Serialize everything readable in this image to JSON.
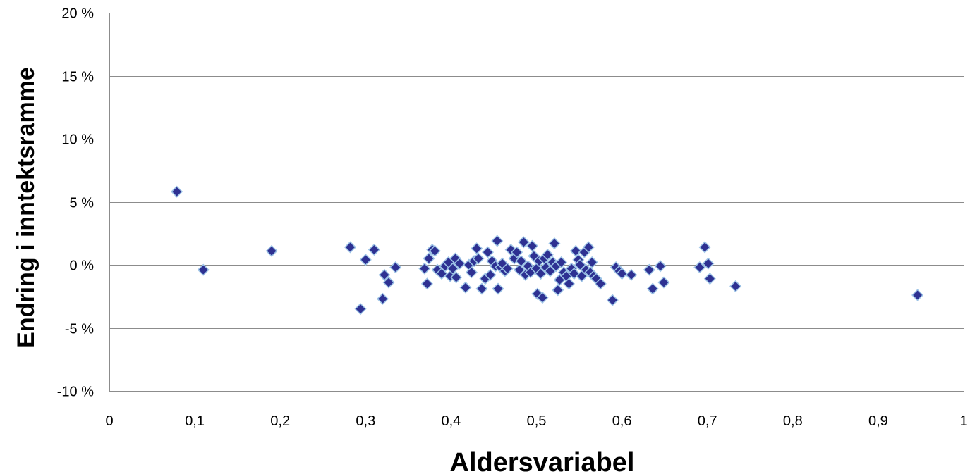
{
  "chart_data": {
    "type": "scatter",
    "title": "",
    "xlabel": "Aldersvariabel",
    "ylabel": "Endring i inntektsramme",
    "xlim": [
      0,
      1
    ],
    "ylim": [
      -10,
      20
    ],
    "x_ticks": [
      0,
      0.1,
      0.2,
      0.3,
      0.4,
      0.5,
      0.6,
      0.7,
      0.8,
      0.9,
      1
    ],
    "x_tick_labels": [
      "0",
      "0,1",
      "0,2",
      "0,3",
      "0,4",
      "0,5",
      "0,6",
      "0,7",
      "0,8",
      "0,9",
      "1"
    ],
    "y_ticks": [
      20,
      15,
      10,
      5,
      0,
      -5,
      -10
    ],
    "y_tick_labels": [
      "20 %",
      "15 %",
      "10 %",
      "5 %",
      "0 %",
      "-5 %",
      "-10 %"
    ],
    "horizontal_gridlines": true,
    "vertical_gridlines": false,
    "legend": "none",
    "marker": "diamond",
    "marker_color": "#2E3192",
    "marker_edge_color": "#9DC3E6",
    "gridline_color": "#8C8C8C",
    "points": [
      {
        "x": 0.079,
        "y": 5.8
      },
      {
        "x": 0.11,
        "y": -0.4
      },
      {
        "x": 0.19,
        "y": 1.1
      },
      {
        "x": 0.282,
        "y": 1.4
      },
      {
        "x": 0.294,
        "y": -3.5
      },
      {
        "x": 0.3,
        "y": 0.4
      },
      {
        "x": 0.31,
        "y": 1.2
      },
      {
        "x": 0.32,
        "y": -2.7
      },
      {
        "x": 0.322,
        "y": -0.8
      },
      {
        "x": 0.327,
        "y": -1.4
      },
      {
        "x": 0.335,
        "y": -0.2
      },
      {
        "x": 0.369,
        "y": -0.3
      },
      {
        "x": 0.372,
        "y": -1.5
      },
      {
        "x": 0.374,
        "y": 0.5
      },
      {
        "x": 0.378,
        "y": 1.2
      },
      {
        "x": 0.381,
        "y": 1.1
      },
      {
        "x": 0.384,
        "y": -0.4
      },
      {
        "x": 0.389,
        "y": -0.7
      },
      {
        "x": 0.393,
        "y": -0.1
      },
      {
        "x": 0.397,
        "y": 0.2
      },
      {
        "x": 0.399,
        "y": -0.9
      },
      {
        "x": 0.402,
        "y": -0.3
      },
      {
        "x": 0.405,
        "y": 0.5
      },
      {
        "x": 0.406,
        "y": -1.0
      },
      {
        "x": 0.41,
        "y": 0.1
      },
      {
        "x": 0.417,
        "y": -1.8
      },
      {
        "x": 0.421,
        "y": 0.0
      },
      {
        "x": 0.424,
        "y": -0.6
      },
      {
        "x": 0.427,
        "y": 0.3
      },
      {
        "x": 0.43,
        "y": 1.3
      },
      {
        "x": 0.432,
        "y": 0.5
      },
      {
        "x": 0.436,
        "y": -1.9
      },
      {
        "x": 0.44,
        "y": -1.1
      },
      {
        "x": 0.443,
        "y": 1.0
      },
      {
        "x": 0.446,
        "y": -0.8
      },
      {
        "x": 0.448,
        "y": 0.3
      },
      {
        "x": 0.452,
        "y": -0.1
      },
      {
        "x": 0.454,
        "y": 1.9
      },
      {
        "x": 0.455,
        "y": -1.9
      },
      {
        "x": 0.458,
        "y": -0.2
      },
      {
        "x": 0.46,
        "y": 0.1
      },
      {
        "x": 0.463,
        "y": -0.5
      },
      {
        "x": 0.466,
        "y": -0.3
      },
      {
        "x": 0.47,
        "y": 1.2
      },
      {
        "x": 0.474,
        "y": 0.5
      },
      {
        "x": 0.477,
        "y": 1.0
      },
      {
        "x": 0.48,
        "y": -0.4
      },
      {
        "x": 0.482,
        "y": 0.3
      },
      {
        "x": 0.485,
        "y": 1.8
      },
      {
        "x": 0.487,
        "y": -0.8
      },
      {
        "x": 0.49,
        "y": -0.1
      },
      {
        "x": 0.493,
        "y": -0.6
      },
      {
        "x": 0.495,
        "y": 1.5
      },
      {
        "x": 0.497,
        "y": 0.7
      },
      {
        "x": 0.5,
        "y": -0.3
      },
      {
        "x": 0.501,
        "y": -2.3
      },
      {
        "x": 0.503,
        "y": 0.3
      },
      {
        "x": 0.505,
        "y": -0.7
      },
      {
        "x": 0.507,
        "y": -2.6
      },
      {
        "x": 0.509,
        "y": 0.5
      },
      {
        "x": 0.511,
        "y": -0.2
      },
      {
        "x": 0.513,
        "y": 0.8
      },
      {
        "x": 0.516,
        "y": -0.5
      },
      {
        "x": 0.519,
        "y": 0.2
      },
      {
        "x": 0.521,
        "y": 1.7
      },
      {
        "x": 0.523,
        "y": -0.1
      },
      {
        "x": 0.525,
        "y": -2.0
      },
      {
        "x": 0.527,
        "y": -1.2
      },
      {
        "x": 0.529,
        "y": 0.2
      },
      {
        "x": 0.532,
        "y": -0.6
      },
      {
        "x": 0.535,
        "y": -0.9
      },
      {
        "x": 0.538,
        "y": -1.5
      },
      {
        "x": 0.541,
        "y": -0.3
      },
      {
        "x": 0.544,
        "y": -0.7
      },
      {
        "x": 0.546,
        "y": 1.1
      },
      {
        "x": 0.549,
        "y": 0.4
      },
      {
        "x": 0.551,
        "y": 0.0
      },
      {
        "x": 0.553,
        "y": -0.9
      },
      {
        "x": 0.556,
        "y": 1.0
      },
      {
        "x": 0.558,
        "y": -0.4
      },
      {
        "x": 0.561,
        "y": 1.4
      },
      {
        "x": 0.563,
        "y": -0.6
      },
      {
        "x": 0.565,
        "y": 0.2
      },
      {
        "x": 0.567,
        "y": -0.9
      },
      {
        "x": 0.57,
        "y": -1.1
      },
      {
        "x": 0.575,
        "y": -1.5
      },
      {
        "x": 0.589,
        "y": -2.8
      },
      {
        "x": 0.593,
        "y": -0.2
      },
      {
        "x": 0.597,
        "y": -0.5
      },
      {
        "x": 0.6,
        "y": -0.7
      },
      {
        "x": 0.611,
        "y": -0.8
      },
      {
        "x": 0.632,
        "y": -0.4
      },
      {
        "x": 0.636,
        "y": -1.9
      },
      {
        "x": 0.645,
        "y": -0.1
      },
      {
        "x": 0.649,
        "y": -1.4
      },
      {
        "x": 0.691,
        "y": -0.2
      },
      {
        "x": 0.697,
        "y": 1.4
      },
      {
        "x": 0.701,
        "y": 0.1
      },
      {
        "x": 0.703,
        "y": -1.1
      },
      {
        "x": 0.733,
        "y": -1.7
      },
      {
        "x": 0.946,
        "y": -2.4
      }
    ]
  }
}
